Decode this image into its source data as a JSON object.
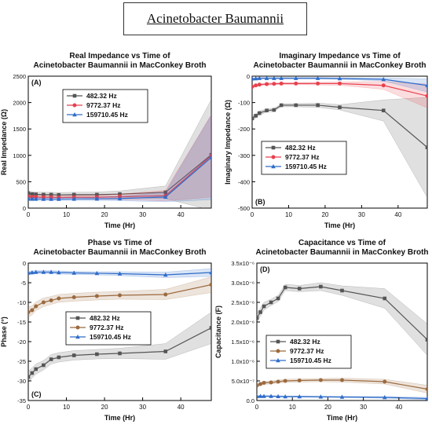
{
  "figure_title": "Acinetobacter Baumannii",
  "chart_data": [
    {
      "type": "line",
      "panel_label": "(A)",
      "title": [
        "Real Impedance vs Time of",
        "Acinetobacter Baumannii in MacConkey Broth"
      ],
      "xlabel": "Time (Hr)",
      "ylabel": "Real Impedance (Ω)",
      "xlim": [
        0,
        48
      ],
      "ylim": [
        0,
        2500
      ],
      "xticks": [
        0,
        10,
        20,
        30,
        40
      ],
      "yticks": [
        0,
        500,
        1000,
        1500,
        2000,
        2500
      ],
      "ytick_labels": [
        "0",
        "500",
        "1000",
        "1500",
        "2000",
        "2500"
      ],
      "legend": "top-left",
      "series": [
        {
          "name": "482.32 Hz",
          "color": "#555555",
          "marker": "square",
          "x": [
            0,
            1,
            2,
            4,
            6,
            8,
            12,
            18,
            24,
            36,
            48
          ],
          "y": [
            280,
            265,
            260,
            255,
            255,
            250,
            255,
            255,
            265,
            300,
            1010
          ],
          "band": [
            50,
            45,
            45,
            45,
            45,
            45,
            45,
            50,
            60,
            120,
            1050
          ]
        },
        {
          "name": "9772.37 Hz",
          "color": "#e8414e",
          "marker": "circle",
          "x": [
            0,
            1,
            2,
            4,
            6,
            8,
            12,
            18,
            24,
            36,
            48
          ],
          "y": [
            215,
            210,
            210,
            205,
            205,
            200,
            205,
            205,
            215,
            235,
            990
          ],
          "band": [
            40,
            35,
            35,
            35,
            35,
            35,
            35,
            40,
            50,
            100,
            780
          ]
        },
        {
          "name": "159710.45 Hz",
          "color": "#2f6cc9",
          "marker": "triangle",
          "x": [
            0,
            1,
            2,
            4,
            6,
            8,
            12,
            18,
            24,
            36,
            48
          ],
          "y": [
            175,
            172,
            172,
            170,
            170,
            170,
            172,
            175,
            180,
            210,
            960
          ],
          "band": [
            30,
            28,
            28,
            28,
            28,
            28,
            28,
            30,
            40,
            90,
            800
          ]
        }
      ]
    },
    {
      "type": "line",
      "panel_label": "(B)",
      "title": [
        "Imaginary Impedance vs Time of",
        "Acinetobacter Baumannii in MacConkey Broth"
      ],
      "xlabel": "Time (Hr)",
      "ylabel": "Imaginary Impedance (Ω)",
      "xlim": [
        0,
        48
      ],
      "ylim": [
        -500,
        0
      ],
      "xticks": [
        0,
        10,
        20,
        30,
        40
      ],
      "yticks": [
        -500,
        -400,
        -300,
        -200,
        -100,
        0
      ],
      "ytick_labels": [
        "-500",
        "-400",
        "-300",
        "-200",
        "-100",
        "0"
      ],
      "legend": "center-left",
      "series": [
        {
          "name": "482.32 Hz",
          "color": "#555555",
          "marker": "square",
          "x": [
            0,
            1,
            2,
            4,
            6,
            8,
            12,
            18,
            24,
            36,
            48
          ],
          "y": [
            -160,
            -150,
            -140,
            -130,
            -128,
            -110,
            -110,
            -110,
            -118,
            -130,
            -270
          ],
          "band": [
            10,
            8,
            8,
            6,
            6,
            6,
            6,
            8,
            10,
            40,
            190
          ]
        },
        {
          "name": "9772.37 Hz",
          "color": "#e8414e",
          "marker": "circle",
          "x": [
            0,
            1,
            2,
            4,
            6,
            8,
            12,
            18,
            24,
            36,
            48
          ],
          "y": [
            -40,
            -35,
            -32,
            -30,
            -29,
            -28,
            -28,
            -28,
            -28,
            -35,
            -75
          ],
          "band": [
            5,
            4,
            4,
            4,
            4,
            4,
            4,
            5,
            6,
            15,
            45
          ]
        },
        {
          "name": "159710.45 Hz",
          "color": "#2f6cc9",
          "marker": "triangle",
          "x": [
            0,
            1,
            2,
            4,
            6,
            8,
            12,
            18,
            24,
            36,
            48
          ],
          "y": [
            -10,
            -9,
            -8,
            -8,
            -8,
            -8,
            -8,
            -8,
            -9,
            -12,
            -35
          ],
          "band": [
            3,
            3,
            3,
            3,
            3,
            3,
            3,
            3,
            3,
            6,
            25
          ]
        }
      ]
    },
    {
      "type": "line",
      "panel_label": "(C)",
      "title": [
        "Phase vs Time of",
        "Acinetobacter Baumannii in MacConkey Broth"
      ],
      "xlabel": "Time (Hr)",
      "ylabel": "Phase (°)",
      "xlim": [
        0,
        48
      ],
      "ylim": [
        -35,
        0
      ],
      "xticks": [
        0,
        10,
        20,
        30,
        40
      ],
      "yticks": [
        -35,
        -30,
        -25,
        -20,
        -15,
        -10,
        -5,
        0
      ],
      "ytick_labels": [
        "-35",
        "-30",
        "-25",
        "-20",
        "-15",
        "-10",
        "-5",
        "0"
      ],
      "legend": "center",
      "series": [
        {
          "name": "482.32 Hz",
          "color": "#555555",
          "marker": "square",
          "x": [
            0,
            1,
            2,
            4,
            6,
            8,
            12,
            18,
            24,
            36,
            48
          ],
          "y": [
            -29,
            -28,
            -27,
            -26,
            -24.5,
            -24,
            -23.5,
            -23.2,
            -23,
            -22.5,
            -16.5
          ],
          "band": [
            1.5,
            1.3,
            1.3,
            1.2,
            1.2,
            1.2,
            1.2,
            1.2,
            1.3,
            2,
            4
          ]
        },
        {
          "name": "9772.37 Hz",
          "color": "#9b6a3f",
          "marker": "circle",
          "x": [
            0,
            1,
            2,
            4,
            6,
            8,
            12,
            18,
            24,
            36,
            48
          ],
          "y": [
            -12.5,
            -12,
            -11,
            -10,
            -9.5,
            -9,
            -8.7,
            -8.4,
            -8.2,
            -8,
            -5.5
          ],
          "band": [
            1.2,
            1.2,
            1.1,
            1.1,
            1,
            1,
            1,
            1,
            1,
            1.3,
            2
          ]
        },
        {
          "name": "159710.45 Hz",
          "color": "#2f6cc9",
          "marker": "triangle",
          "x": [
            0,
            1,
            2,
            4,
            6,
            8,
            12,
            18,
            24,
            36,
            48
          ],
          "y": [
            -2.5,
            -2.4,
            -2.3,
            -2.3,
            -2.3,
            -2.4,
            -2.5,
            -2.6,
            -2.7,
            -3,
            -2.4
          ],
          "band": [
            0.4,
            0.4,
            0.4,
            0.4,
            0.4,
            0.4,
            0.4,
            0.4,
            0.5,
            0.7,
            1
          ]
        }
      ]
    },
    {
      "type": "line",
      "panel_label": "(D)",
      "title": [
        "Capacitance vs Time of",
        "Acinetobacter Baumannii in MacConkey Broth"
      ],
      "xlabel": "Time (Hr)",
      "ylabel": "Capacitance (F)",
      "xlim": [
        0,
        48
      ],
      "ylim": [
        0,
        3.5e-06
      ],
      "xticks": [
        0,
        10,
        20,
        30,
        40
      ],
      "yticks": [
        0,
        5e-07,
        1e-06,
        1.5e-06,
        2e-06,
        2.5e-06,
        3e-06,
        3.5e-06
      ],
      "ytick_labels": [
        "0.0",
        "5.0x10⁻⁷",
        "1.0x10⁻⁶",
        "1.5x10⁻⁶",
        "2.0x10⁻⁶",
        "2.5x10⁻⁶",
        "3.0x10⁻⁶",
        "3.5x10⁻⁶"
      ],
      "legend": "center-left",
      "series": [
        {
          "name": "482.32 Hz",
          "color": "#555555",
          "marker": "square",
          "x": [
            0,
            1,
            2,
            4,
            6,
            8,
            12,
            18,
            24,
            36,
            48
          ],
          "y": [
            2.1e-06,
            2.25e-06,
            2.4e-06,
            2.5e-06,
            2.6e-06,
            2.88e-06,
            2.85e-06,
            2.9e-06,
            2.8e-06,
            2.6e-06,
            1.55e-06
          ],
          "band": [
            1.2e-07,
            1e-07,
            1e-07,
            8e-08,
            8e-08,
            8e-08,
            8e-08,
            1e-07,
            1.2e-07,
            2.5e-07,
            4e-07
          ]
        },
        {
          "name": "9772.37 Hz",
          "color": "#9b6a3f",
          "marker": "circle",
          "x": [
            0,
            1,
            2,
            4,
            6,
            8,
            12,
            18,
            24,
            36,
            48
          ],
          "y": [
            3.8e-07,
            4.2e-07,
            4.5e-07,
            4.6e-07,
            4.8e-07,
            5e-07,
            5.1e-07,
            5.2e-07,
            5.2e-07,
            4.8e-07,
            2.9e-07
          ],
          "band": [
            4e-08,
            4e-08,
            4e-08,
            4e-08,
            4e-08,
            4e-08,
            4e-08,
            4e-08,
            5e-08,
            6e-08,
            1e-07
          ]
        },
        {
          "name": "159710.45 Hz",
          "color": "#2f6cc9",
          "marker": "triangle",
          "x": [
            0,
            1,
            2,
            4,
            6,
            8,
            12,
            18,
            24,
            36,
            48
          ],
          "y": [
            1.1e-07,
            1.1e-07,
            1.1e-07,
            1.1e-07,
            1.05e-07,
            1e-07,
            1e-07,
            9.5e-08,
            9e-08,
            8e-08,
            5e-08
          ],
          "band": [
            1.5e-08,
            1.5e-08,
            1.5e-08,
            1.5e-08,
            1.5e-08,
            1.5e-08,
            1.5e-08,
            1.5e-08,
            1.5e-08,
            2e-08,
            3e-08
          ]
        }
      ]
    }
  ]
}
